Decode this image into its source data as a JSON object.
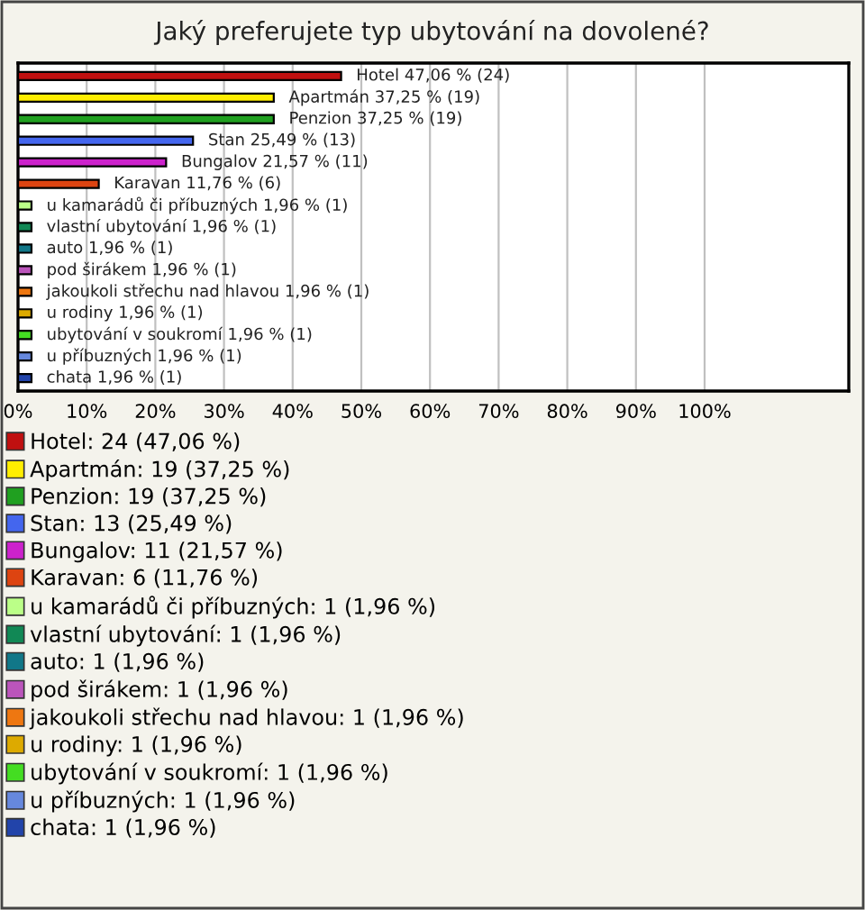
{
  "chart_data": {
    "type": "bar",
    "orientation": "horizontal",
    "title": "Jaký preferujete typ ubytování na dovolené?",
    "categories": [
      null,
      null,
      null,
      null,
      null,
      null,
      null,
      null,
      null,
      null,
      null,
      null,
      null,
      null,
      null
    ],
    "series": [
      {
        "name": "Hotel: 24 (47,06 %)",
        "color": "#c01010",
        "values": [
          47.06,
          null,
          null,
          null,
          null,
          null,
          null,
          null,
          null,
          null,
          null,
          null,
          null,
          null,
          null
        ]
      },
      {
        "name": "Apartmán: 19 (37,25 %)",
        "color": "#ffee00",
        "values": [
          null,
          37.25,
          null,
          null,
          null,
          null,
          null,
          null,
          null,
          null,
          null,
          null,
          null,
          null,
          null
        ]
      },
      {
        "name": "Penzion: 19 (37,25 %)",
        "color": "#20a020",
        "values": [
          null,
          null,
          37.25,
          null,
          null,
          null,
          null,
          null,
          null,
          null,
          null,
          null,
          null,
          null,
          null
        ]
      },
      {
        "name": "Stan: 13 (25,49 %)",
        "color": "#4466ee",
        "values": [
          null,
          null,
          null,
          25.49,
          null,
          null,
          null,
          null,
          null,
          null,
          null,
          null,
          null,
          null,
          null
        ]
      },
      {
        "name": "Bungalov: 11 (21,57 %)",
        "color": "#cc22cc",
        "values": [
          null,
          null,
          null,
          null,
          21.57,
          null,
          null,
          null,
          null,
          null,
          null,
          null,
          null,
          null,
          null
        ]
      },
      {
        "name": "Karavan: 6 (11,76 %)",
        "color": "#dd4411",
        "values": [
          null,
          null,
          null,
          null,
          null,
          11.76,
          null,
          null,
          null,
          null,
          null,
          null,
          null,
          null,
          null
        ]
      },
      {
        "name": "u kamarádů či příbuzných: 1 (1,96 %)",
        "color": "#bbff88",
        "values": [
          null,
          null,
          null,
          null,
          null,
          null,
          1.96,
          null,
          null,
          null,
          null,
          null,
          null,
          null,
          null
        ]
      },
      {
        "name": "vlastní ubytování: 1 (1,96 %)",
        "color": "#118855",
        "values": [
          null,
          null,
          null,
          null,
          null,
          null,
          null,
          1.96,
          null,
          null,
          null,
          null,
          null,
          null,
          null
        ]
      },
      {
        "name": "auto: 1 (1,96 %)",
        "color": "#117788",
        "values": [
          null,
          null,
          null,
          null,
          null,
          null,
          null,
          null,
          1.96,
          null,
          null,
          null,
          null,
          null,
          null
        ]
      },
      {
        "name": "pod širákem: 1 (1,96 %)",
        "color": "#bb55bb",
        "values": [
          null,
          null,
          null,
          null,
          null,
          null,
          null,
          null,
          null,
          1.96,
          null,
          null,
          null,
          null,
          null
        ]
      },
      {
        "name": "jakoukoli střechu nad hlavou: 1 (1,96 %)",
        "color": "#ee7711",
        "values": [
          null,
          null,
          null,
          null,
          null,
          null,
          null,
          null,
          null,
          null,
          1.96,
          null,
          null,
          null,
          null
        ]
      },
      {
        "name": "u rodiny: 1 (1,96 %)",
        "color": "#ddaa00",
        "values": [
          null,
          null,
          null,
          null,
          null,
          null,
          null,
          null,
          null,
          null,
          null,
          1.96,
          null,
          null,
          null
        ]
      },
      {
        "name": "ubytování v soukromí: 1 (1,96 %)",
        "color": "#44dd22",
        "values": [
          null,
          null,
          null,
          null,
          null,
          null,
          null,
          null,
          null,
          null,
          null,
          null,
          1.96,
          null,
          null
        ]
      },
      {
        "name": "u příbuzných: 1 (1,96 %)",
        "color": "#6688dd",
        "values": [
          null,
          null,
          null,
          null,
          null,
          null,
          null,
          null,
          null,
          null,
          null,
          null,
          null,
          1.96,
          null
        ]
      },
      {
        "name": "chata: 1 (1,96 %)",
        "color": "#2244aa",
        "values": [
          null,
          null,
          null,
          null,
          null,
          null,
          null,
          null,
          null,
          null,
          null,
          null,
          null,
          null,
          1.96
        ]
      }
    ],
    "value_labels": [
      "Hotel 47,06 % (24)",
      "Apartmán 37,25 % (19)",
      "Penzion 37,25 % (19)",
      "Stan 25,49 % (13)",
      "Bungalov 21,57 % (11)",
      "Karavan 11,76 % (6)",
      "u kamarádů či příbuzných 1,96 % (1)",
      "vlastní ubytování 1,96 % (1)",
      "auto 1,96 % (1)",
      "pod širákem 1,96 % (1)",
      "jakoukoli střechu nad hlavou 1,96 % (1)",
      "u rodiny 1,96 % (1)",
      "ubytování v soukromí 1,96 % (1)",
      "u příbuzných 1,96 % (1)",
      "chata 1,96 % (1)"
    ],
    "xlim": [
      0,
      121
    ],
    "xticks": [
      {
        "value": 0,
        "label": "0%"
      },
      {
        "value": 10,
        "label": "10%"
      },
      {
        "value": 20,
        "label": "20%"
      },
      {
        "value": 30,
        "label": "30%"
      },
      {
        "value": 40,
        "label": "40%"
      },
      {
        "value": 50,
        "label": "50%"
      },
      {
        "value": 60,
        "label": "60%"
      },
      {
        "value": 70,
        "label": "70%"
      },
      {
        "value": 80,
        "label": "80%"
      },
      {
        "value": 90,
        "label": "90%"
      },
      {
        "value": 100,
        "label": "100%"
      }
    ],
    "tick_labels": "x",
    "grid": "x",
    "legend": "bottom"
  }
}
